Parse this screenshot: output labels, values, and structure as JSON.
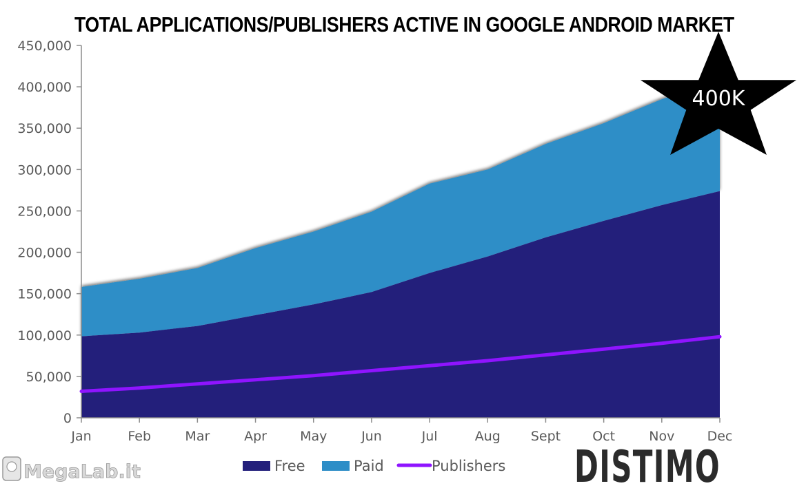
{
  "chart_data": {
    "type": "area",
    "title": "TOTAL APPLICATIONS/PUBLISHERS ACTIVE IN GOOGLE ANDROID MARKET",
    "categories": [
      "Jan",
      "Feb",
      "Mar",
      "Apr",
      "May",
      "Jun",
      "Jul",
      "Aug",
      "Sept",
      "Oct",
      "Nov",
      "Dec"
    ],
    "stacked": true,
    "ylim": [
      0,
      450000
    ],
    "yticks": [
      0,
      50000,
      100000,
      150000,
      200000,
      250000,
      300000,
      350000,
      400000,
      450000
    ],
    "ytick_labels": [
      "0",
      "50,000",
      "100,000",
      "150,000",
      "200,000",
      "250,000",
      "300,000",
      "350,000",
      "400,000",
      "450,000"
    ],
    "series": [
      {
        "name": "Free",
        "kind": "area",
        "color": "#231f7b",
        "values": [
          98500,
          103000,
          111000,
          124000,
          137000,
          152000,
          175000,
          195000,
          218000,
          238000,
          257000,
          274000
        ]
      },
      {
        "name": "Paid",
        "kind": "area",
        "color": "#2e8ec7",
        "values": [
          59500,
          65000,
          70000,
          81000,
          88000,
          97000,
          108000,
          105000,
          113000,
          118000,
          128000,
          134000
        ]
      },
      {
        "name": "Publishers",
        "kind": "line",
        "color": "#8f14ff",
        "values": [
          32000,
          36000,
          41000,
          46000,
          51000,
          57000,
          63000,
          69000,
          76000,
          83000,
          90000,
          98000
        ]
      }
    ],
    "legend": {
      "position": "bottom",
      "items": [
        "Free",
        "Paid",
        "Publishers"
      ]
    },
    "annotation": {
      "text": "400K",
      "shape": "star",
      "color": "#000000"
    },
    "grid": false
  },
  "logo": {
    "text": "DISTIMO"
  },
  "watermark": {
    "text": "MegaLab.it"
  }
}
